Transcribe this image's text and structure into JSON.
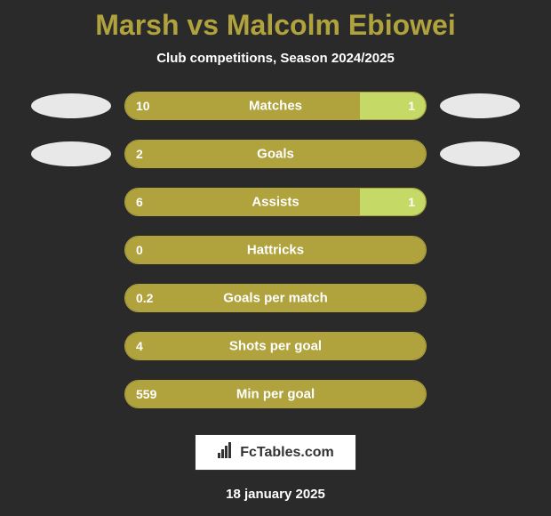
{
  "title": "Marsh vs Malcolm Ebiowei",
  "subtitle": "Club competitions, Season 2024/2025",
  "brand": "FcTables.com",
  "date": "18 january 2025",
  "colors": {
    "background": "#2a2a2a",
    "title": "#b0a23d",
    "text": "#ffffff",
    "bar_left": "#b0a23d",
    "bar_right": "#c4d966",
    "avatar": "#e8e8e8",
    "brand_bg": "#ffffff"
  },
  "stats": [
    {
      "label": "Matches",
      "left_value": "10",
      "right_value": "1",
      "left_pct": 78,
      "right_pct": 22,
      "show_avatars": true
    },
    {
      "label": "Goals",
      "left_value": "2",
      "right_value": "",
      "left_pct": 100,
      "right_pct": 0,
      "show_avatars": true
    },
    {
      "label": "Assists",
      "left_value": "6",
      "right_value": "1",
      "left_pct": 78,
      "right_pct": 22,
      "show_avatars": false
    },
    {
      "label": "Hattricks",
      "left_value": "0",
      "right_value": "",
      "left_pct": 100,
      "right_pct": 0,
      "show_avatars": false
    },
    {
      "label": "Goals per match",
      "left_value": "0.2",
      "right_value": "",
      "left_pct": 100,
      "right_pct": 0,
      "show_avatars": false
    },
    {
      "label": "Shots per goal",
      "left_value": "4",
      "right_value": "",
      "left_pct": 100,
      "right_pct": 0,
      "show_avatars": false
    },
    {
      "label": "Min per goal",
      "left_value": "559",
      "right_value": "",
      "left_pct": 100,
      "right_pct": 0,
      "show_avatars": false
    }
  ]
}
